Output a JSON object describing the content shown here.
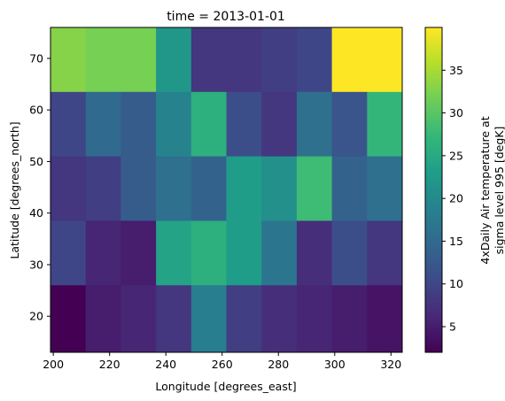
{
  "chart_data": {
    "type": "heatmap",
    "title": "time = 2013-01-01",
    "xlabel": "Longitude [degrees_east]",
    "ylabel": "Latitude [degrees_north]",
    "colorbar_label_lines": [
      "4xDaily Air temperature at",
      "sigma level 995 [degK]"
    ],
    "colormap": "viridis",
    "x_centers": [
      200,
      212.5,
      225,
      237.5,
      250,
      262.5,
      275,
      287.5,
      300,
      312.5,
      325
    ],
    "y_centers": [
      15,
      20,
      25,
      30,
      35,
      40,
      45,
      50,
      55,
      60,
      65,
      70,
      75
    ],
    "xlim": [
      199,
      324
    ],
    "ylim": [
      13,
      76
    ],
    "x_ticks": [
      200,
      220,
      240,
      260,
      280,
      300,
      320
    ],
    "y_ticks": [
      20,
      30,
      40,
      50,
      60,
      70
    ],
    "vmin": 2,
    "vmax": 40,
    "colorbar_ticks": [
      5,
      10,
      15,
      20,
      25,
      30,
      35
    ],
    "rows": [
      {
        "lat_range": [
          63.5,
          76
        ],
        "values": [
          33,
          32,
          32,
          22,
          8,
          8,
          9,
          10,
          40,
          40
        ]
      },
      {
        "lat_range": [
          51,
          63.5
        ],
        "values": [
          10,
          15,
          13,
          19,
          26,
          11,
          8,
          16,
          12,
          27
        ]
      },
      {
        "lat_range": [
          38.5,
          51
        ],
        "values": [
          8,
          9,
          13,
          16,
          14,
          23,
          21,
          28,
          14,
          16
        ]
      },
      {
        "lat_range": [
          26,
          38.5
        ],
        "values": [
          10,
          6,
          5,
          24,
          26,
          23,
          17,
          7,
          11,
          8
        ]
      },
      {
        "lat_range": [
          13,
          26
        ],
        "values": [
          2,
          5,
          6,
          8,
          18,
          9,
          7,
          6,
          5,
          4
        ]
      }
    ],
    "col_lon_ranges": [
      [
        199,
        211.5
      ],
      [
        211.5,
        224
      ],
      [
        224,
        236.5
      ],
      [
        236.5,
        249
      ],
      [
        249,
        261.5
      ],
      [
        261.5,
        274
      ],
      [
        274,
        286.5
      ],
      [
        286.5,
        299
      ],
      [
        299,
        311.5
      ],
      [
        311.5,
        324
      ]
    ],
    "grid": false
  }
}
